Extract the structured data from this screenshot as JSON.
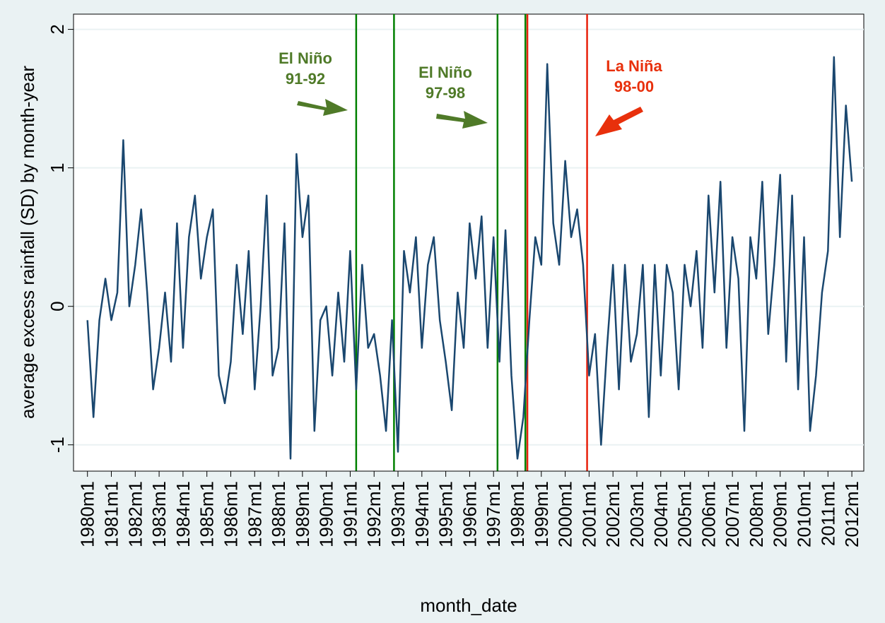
{
  "chart_data": {
    "type": "line",
    "xlabel": "month_date",
    "ylabel": "average excess rainfall (SD) by month-year",
    "x": [
      240,
      243,
      246,
      249,
      252,
      255,
      258,
      261,
      264,
      267,
      270,
      273,
      276,
      279,
      282,
      285,
      288,
      291,
      294,
      297,
      300,
      303,
      306,
      309,
      312,
      315,
      318,
      321,
      324,
      327,
      330,
      333,
      336,
      339,
      342,
      345,
      348,
      351,
      354,
      357,
      360,
      363,
      366,
      369,
      372,
      375,
      378,
      381,
      384,
      387,
      390,
      393,
      396,
      399,
      402,
      405,
      408,
      411,
      414,
      417,
      420,
      423,
      426,
      429,
      432,
      435,
      438,
      441,
      444,
      447,
      450,
      453,
      456,
      459,
      462,
      465,
      468,
      471,
      474,
      477,
      480,
      483,
      486,
      489,
      492,
      495,
      498,
      501,
      504,
      507,
      510,
      513,
      516,
      519,
      522,
      525,
      528,
      531,
      534,
      537,
      540,
      543,
      546,
      549,
      552,
      555,
      558,
      561,
      564,
      567,
      570,
      573,
      576,
      579,
      582,
      585,
      588,
      591,
      594,
      597,
      600,
      603,
      606,
      609,
      612,
      615,
      618,
      621,
      624
    ],
    "series": [
      {
        "color": "#1a476f",
        "values": [
          -0.1,
          -0.8,
          -0.1,
          0.2,
          -0.1,
          0.1,
          1.2,
          0.0,
          0.3,
          0.7,
          0.1,
          -0.6,
          -0.3,
          0.1,
          -0.4,
          0.6,
          -0.3,
          0.5,
          0.8,
          0.2,
          0.5,
          0.7,
          -0.5,
          -0.7,
          -0.4,
          0.3,
          -0.2,
          0.4,
          -0.6,
          0.0,
          0.8,
          -0.5,
          -0.3,
          0.6,
          -1.1,
          1.1,
          0.5,
          0.8,
          -0.9,
          -0.1,
          0.0,
          -0.5,
          0.1,
          -0.4,
          0.4,
          -0.6,
          0.3,
          -0.3,
          -0.2,
          -0.5,
          -0.9,
          -0.1,
          -1.05,
          0.4,
          0.1,
          0.5,
          -0.3,
          0.3,
          0.5,
          -0.1,
          -0.4,
          -0.75,
          0.1,
          -0.3,
          0.6,
          0.2,
          0.65,
          -0.3,
          0.5,
          -0.4,
          0.55,
          -0.5,
          -1.1,
          -0.8,
          -0.1,
          0.5,
          0.3,
          1.75,
          0.6,
          0.3,
          1.05,
          0.5,
          0.7,
          0.3,
          -0.5,
          -0.2,
          -1.0,
          -0.3,
          0.3,
          -0.6,
          0.3,
          -0.4,
          -0.2,
          0.3,
          -0.8,
          0.3,
          -0.5,
          0.3,
          0.1,
          -0.6,
          0.3,
          0.0,
          0.4,
          -0.3,
          0.8,
          0.1,
          0.9,
          -0.3,
          0.5,
          0.2,
          -0.9,
          0.5,
          0.2,
          0.9,
          -0.2,
          0.3,
          0.95,
          -0.4,
          0.8,
          -0.6,
          0.5,
          -0.9,
          -0.5,
          0.1,
          0.4,
          1.8,
          0.5,
          1.45,
          0.9
        ]
      }
    ],
    "vlines": [
      {
        "x": 375,
        "color": "#008000"
      },
      {
        "x": 394,
        "color": "#008000"
      },
      {
        "x": 446,
        "color": "#008000"
      },
      {
        "x": 460,
        "color": "#008000"
      },
      {
        "x": 461,
        "color": "#e8200c"
      },
      {
        "x": 491,
        "color": "#e8200c"
      }
    ],
    "annotations": [
      {
        "lines": [
          "El Niño",
          "91-92"
        ],
        "color": "#4f7a28"
      },
      {
        "lines": [
          "El Niño",
          "97-98"
        ],
        "color": "#4f7a28"
      },
      {
        "lines": [
          "La Niña",
          "98-00"
        ],
        "color": "#e8300c"
      }
    ],
    "xlim": [
      233,
      630
    ],
    "ylim": [
      -1.19,
      2.11
    ],
    "yticks": [
      -1,
      0,
      1,
      2
    ],
    "xticks": [
      {
        "value": 240,
        "label": "1980m1"
      },
      {
        "value": 252,
        "label": "1981m1"
      },
      {
        "value": 264,
        "label": "1982m1"
      },
      {
        "value": 276,
        "label": "1983m1"
      },
      {
        "value": 288,
        "label": "1984m1"
      },
      {
        "value": 300,
        "label": "1985m1"
      },
      {
        "value": 312,
        "label": "1986m1"
      },
      {
        "value": 324,
        "label": "1987m1"
      },
      {
        "value": 336,
        "label": "1988m1"
      },
      {
        "value": 348,
        "label": "1989m1"
      },
      {
        "value": 360,
        "label": "1990m1"
      },
      {
        "value": 372,
        "label": "1991m1"
      },
      {
        "value": 384,
        "label": "1992m1"
      },
      {
        "value": 396,
        "label": "1993m1"
      },
      {
        "value": 408,
        "label": "1994m1"
      },
      {
        "value": 420,
        "label": "1995m1"
      },
      {
        "value": 432,
        "label": "1996m1"
      },
      {
        "value": 444,
        "label": "1997m1"
      },
      {
        "value": 456,
        "label": "1998m1"
      },
      {
        "value": 468,
        "label": "1999m1"
      },
      {
        "value": 480,
        "label": "2000m1"
      },
      {
        "value": 492,
        "label": "2001m1"
      },
      {
        "value": 504,
        "label": "2002m1"
      },
      {
        "value": 516,
        "label": "2003m1"
      },
      {
        "value": 528,
        "label": "2004m1"
      },
      {
        "value": 540,
        "label": "2005m1"
      },
      {
        "value": 552,
        "label": "2006m1"
      },
      {
        "value": 564,
        "label": "2007m1"
      },
      {
        "value": 576,
        "label": "2008m1"
      },
      {
        "value": 588,
        "label": "2009m1"
      },
      {
        "value": 600,
        "label": "2010m1"
      },
      {
        "value": 612,
        "label": "2011m1"
      },
      {
        "value": 624,
        "label": "2012m1"
      }
    ],
    "grid": true
  }
}
